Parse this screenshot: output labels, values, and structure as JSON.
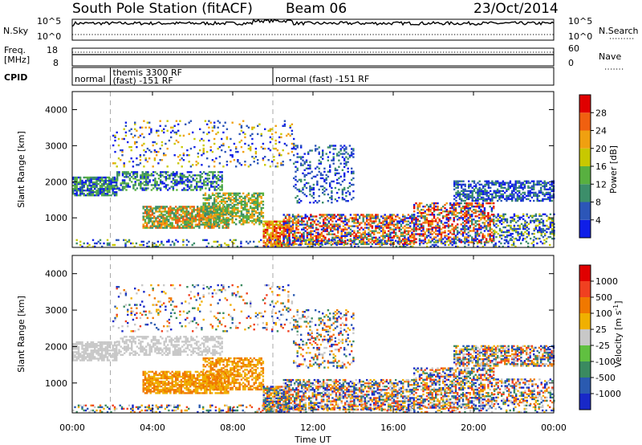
{
  "header": {
    "station": "South Pole Station (fitACF)",
    "beam": "Beam 06",
    "date": "23/Oct/2014"
  },
  "top_panels": {
    "nsky_label": "N.Sky",
    "nsky_ticks": [
      "10^5",
      "10^0"
    ],
    "nsearch_label": "N.Search",
    "nsearch_ticks": [
      "10^5",
      "10^0"
    ],
    "freq_label_line1": "Freq.",
    "freq_label_line2": "[MHz]",
    "freq_ticks": [
      "18",
      "8"
    ],
    "nave_label": "Nave",
    "nave_ticks": [
      "60",
      "0"
    ],
    "cpid_label": "CPID",
    "modes": [
      {
        "line1": "normal",
        "line2": "",
        "start": 0,
        "end": 1.9
      },
      {
        "line1": "themis 3300 RF",
        "line2": "(fast) -151 RF",
        "start": 1.9,
        "end": 10.0
      },
      {
        "line1": "normal (fast) -151 RF",
        "line2": "",
        "start": 10.0,
        "end": 24.0
      }
    ]
  },
  "chart_data": [
    {
      "type": "heatmap",
      "panel": "power",
      "ylabel": "Slant Range [km]",
      "xlim": [
        0,
        24
      ],
      "ylim": [
        180,
        4500
      ],
      "yticks": [
        1000,
        2000,
        3000,
        4000
      ],
      "colorbar": {
        "label": "Power [dB]",
        "ticks": [
          4,
          8,
          12,
          16,
          20,
          24,
          28
        ],
        "colors": [
          "#0f1ee8",
          "#2c56b8",
          "#3c8e6a",
          "#58b040",
          "#c8c800",
          "#f0a010",
          "#f06010",
          "#e00000"
        ]
      }
    },
    {
      "type": "heatmap",
      "panel": "velocity",
      "ylabel": "Slant Range [km]",
      "xlabel": "Time UT",
      "xlim": [
        0,
        24
      ],
      "ylim": [
        180,
        4500
      ],
      "yticks": [
        1000,
        2000,
        3000,
        4000
      ],
      "xticks": [
        "00:00",
        "04:00",
        "08:00",
        "12:00",
        "16:00",
        "20:00",
        "00:00"
      ],
      "colorbar": {
        "label": "Velocity [m s",
        "label_sup": "-1",
        "label_end": "]",
        "ticks": [
          "1000",
          "500",
          "100",
          "25",
          "-25",
          "-100",
          "-500",
          "-1000"
        ],
        "colors": [
          "#1828c8",
          "#2a5ab0",
          "#3a8a60",
          "#60c040",
          "#c8c8c8",
          "#f0b000",
          "#f07800",
          "#f04020",
          "#e00000"
        ]
      }
    }
  ]
}
